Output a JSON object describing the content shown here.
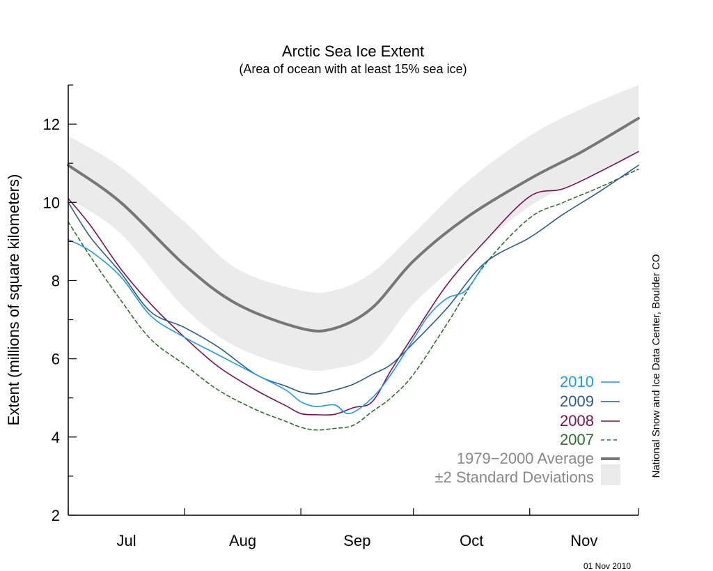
{
  "chart_data": {
    "type": "line",
    "title": "Arctic Sea Ice Extent",
    "subtitle": "(Area of ocean with at least 15% sea ice)",
    "ylabel": "Extent (millions of square kilometers)",
    "xlabel": "",
    "ylim": [
      2,
      13
    ],
    "yticks": [
      "2",
      "4",
      "6",
      "8",
      "10",
      "12"
    ],
    "ytick_values": [
      2,
      4,
      6,
      8,
      10,
      12
    ],
    "xlim": [
      "Jul 1",
      "Nov 30"
    ],
    "xtick_labels": [
      "Jul",
      "Aug",
      "Sep",
      "Oct",
      "Nov"
    ],
    "x_month_bounds": [
      "Jul 1",
      "Aug 1",
      "Sep 1",
      "Oct 1",
      "Nov 1",
      "Nov 30"
    ],
    "credit": "National Snow and Ice Data Center, Boulder CO",
    "date": "01 Nov 2010",
    "legend_position": "bottom-right",
    "band": {
      "name": "±2 Standard Deviations",
      "color": "#ebebeb",
      "x": [
        "Jul 1",
        "Jul 15",
        "Aug 1",
        "Aug 15",
        "Sep 1",
        "Sep 10",
        "Sep 20",
        "Oct 1",
        "Oct 15",
        "Nov 1",
        "Nov 15",
        "Nov 30"
      ],
      "upper": [
        11.7,
        10.9,
        9.5,
        8.3,
        7.75,
        7.75,
        8.2,
        9.2,
        10.5,
        11.7,
        12.4,
        13.0
      ],
      "lower": [
        10.1,
        9.2,
        7.3,
        6.3,
        5.75,
        5.75,
        6.1,
        7.4,
        8.6,
        9.9,
        10.6,
        11.3
      ]
    },
    "series": [
      {
        "name": "1979−2000 Average",
        "color": "#777777",
        "style": "thick",
        "x": [
          "Jul 1",
          "Jul 15",
          "Aug 1",
          "Aug 15",
          "Sep 1",
          "Sep 10",
          "Sep 20",
          "Oct 1",
          "Oct 15",
          "Nov 1",
          "Nov 15",
          "Nov 30"
        ],
        "values": [
          10.95,
          10.0,
          8.4,
          7.4,
          6.78,
          6.78,
          7.3,
          8.5,
          9.6,
          10.6,
          11.3,
          12.15
        ]
      },
      {
        "name": "2010",
        "color": "#1a9be6",
        "style": "solid",
        "x": [
          "Jul 1",
          "Jul 7",
          "Jul 15",
          "Jul 23",
          "Aug 1",
          "Aug 10",
          "Aug 20",
          "Aug 28",
          "Sep 1",
          "Sep 5",
          "Sep 10",
          "Sep 14",
          "Sep 20",
          "Sep 25",
          "Oct 1",
          "Oct 5",
          "Oct 10",
          "Oct 15",
          "Oct 20"
        ],
        "values": [
          9.05,
          8.75,
          8.1,
          7.1,
          6.55,
          6.1,
          5.6,
          5.2,
          4.9,
          4.78,
          4.82,
          4.6,
          5.0,
          5.6,
          6.5,
          7.1,
          7.55,
          7.75,
          8.45
        ]
      },
      {
        "name": "2009",
        "color": "#2e5a86",
        "style": "solid",
        "x": [
          "Jul 1",
          "Jul 7",
          "Jul 15",
          "Jul 23",
          "Aug 1",
          "Aug 10",
          "Aug 20",
          "Aug 28",
          "Sep 1",
          "Sep 5",
          "Sep 10",
          "Sep 15",
          "Sep 20",
          "Sep 25",
          "Oct 1",
          "Oct 10",
          "Oct 20",
          "Nov 1",
          "Nov 10",
          "Nov 20",
          "Nov 30"
        ],
        "values": [
          10.0,
          9.1,
          8.2,
          7.2,
          6.8,
          6.3,
          5.6,
          5.3,
          5.15,
          5.1,
          5.2,
          5.35,
          5.6,
          5.85,
          6.4,
          7.3,
          8.45,
          9.1,
          9.7,
          10.3,
          10.95
        ]
      },
      {
        "name": "2008",
        "color": "#7a1150",
        "style": "solid",
        "x": [
          "Jul 1",
          "Jul 7",
          "Jul 15",
          "Jul 23",
          "Aug 1",
          "Aug 10",
          "Aug 20",
          "Aug 28",
          "Sep 1",
          "Sep 5",
          "Sep 10",
          "Sep 15",
          "Sep 20",
          "Sep 25",
          "Oct 1",
          "Oct 10",
          "Oct 20",
          "Nov 1",
          "Nov 10",
          "Nov 20",
          "Nov 30"
        ],
        "values": [
          10.1,
          9.4,
          8.3,
          7.4,
          6.55,
          5.8,
          5.2,
          4.8,
          4.6,
          4.57,
          4.58,
          4.75,
          4.9,
          5.7,
          6.6,
          7.9,
          9.0,
          10.15,
          10.35,
          10.8,
          11.3
        ]
      },
      {
        "name": "2007",
        "color": "#2e6e2e",
        "style": "dashed",
        "x": [
          "Jul 1",
          "Jul 7",
          "Jul 15",
          "Jul 23",
          "Aug 1",
          "Aug 10",
          "Aug 20",
          "Aug 28",
          "Sep 1",
          "Sep 5",
          "Sep 10",
          "Sep 15",
          "Sep 20",
          "Sep 25",
          "Oct 1",
          "Oct 10",
          "Oct 20",
          "Nov 1",
          "Nov 10",
          "Nov 20",
          "Nov 30"
        ],
        "values": [
          9.5,
          8.6,
          7.5,
          6.5,
          5.85,
          5.2,
          4.7,
          4.4,
          4.25,
          4.18,
          4.22,
          4.3,
          4.65,
          5.0,
          5.6,
          6.9,
          8.4,
          9.6,
          10.0,
          10.4,
          10.85
        ]
      }
    ]
  }
}
